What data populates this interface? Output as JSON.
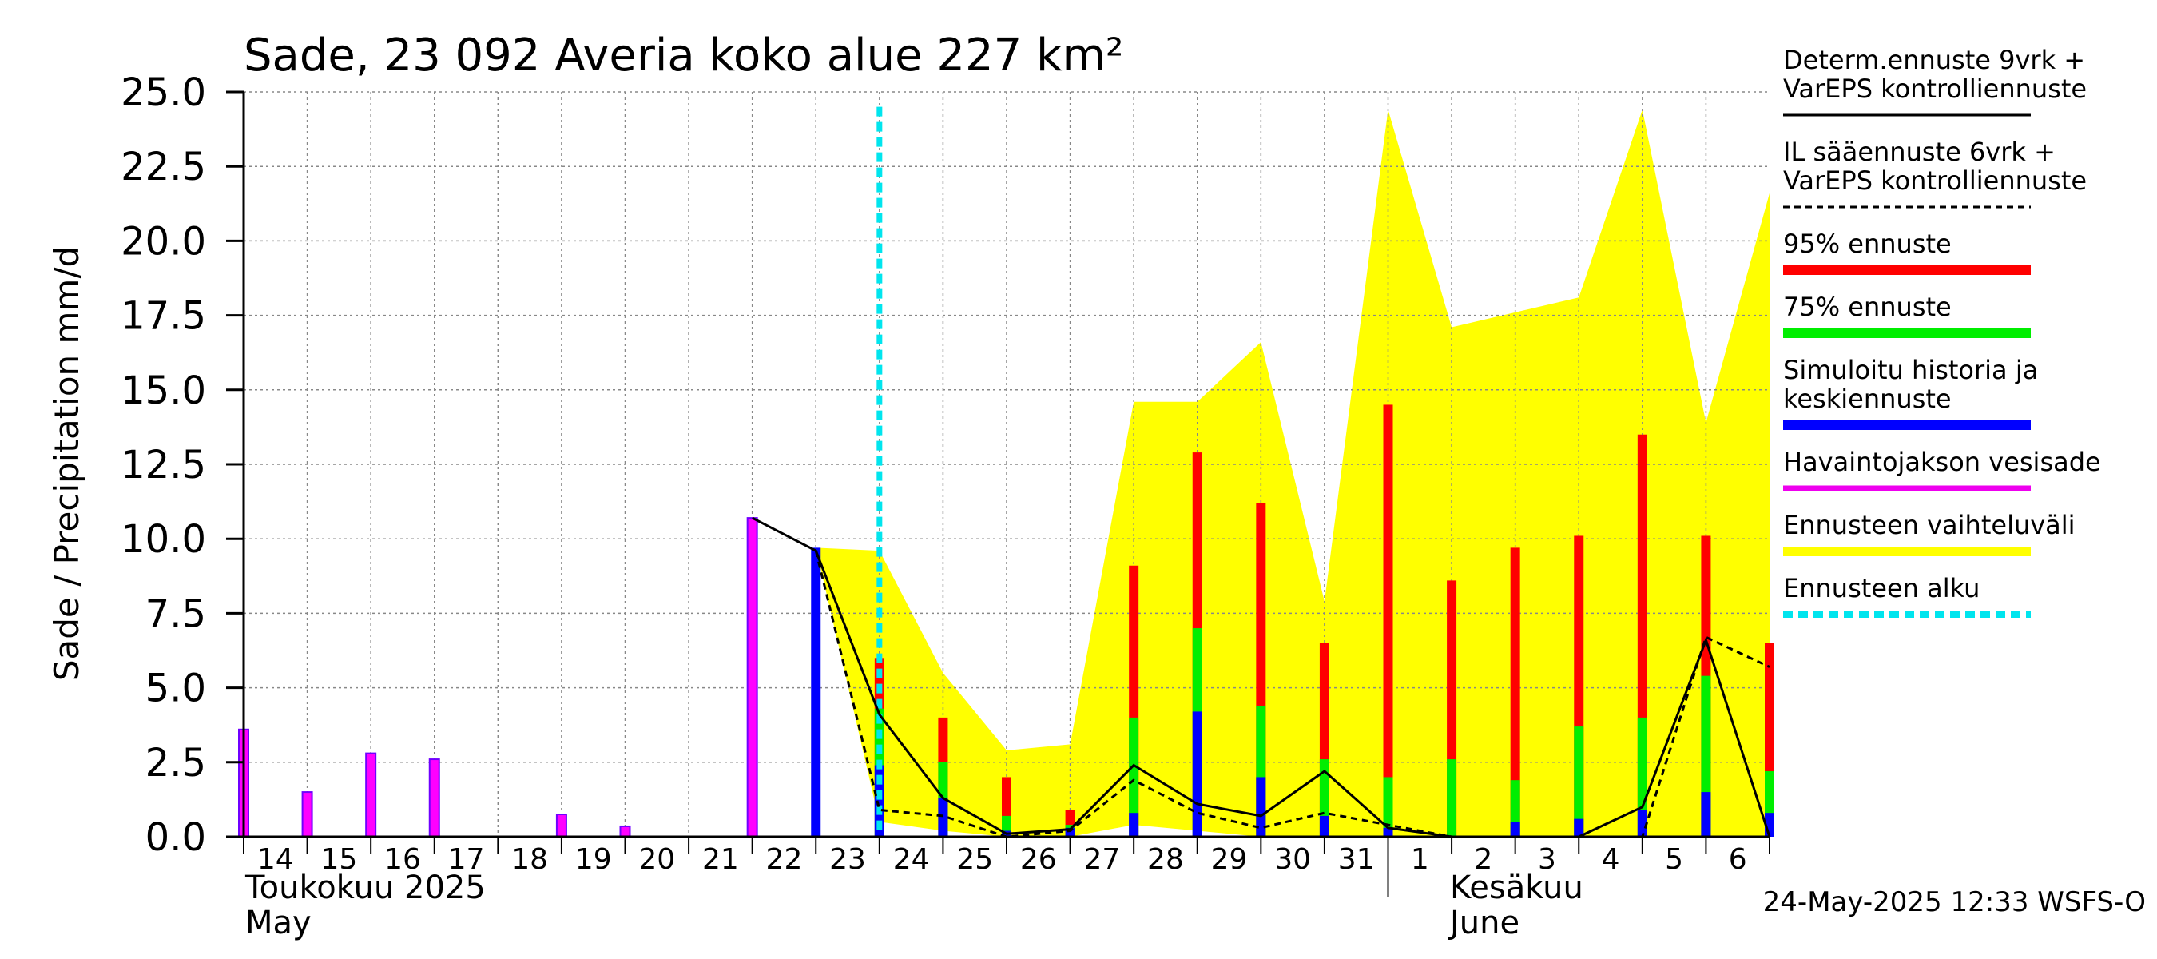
{
  "chart_data": {
    "type": "bar",
    "title": "Sade, 23 092 Averia koko alue 227 km²",
    "ylabel": "Sade / Precipitation   mm/d",
    "ylim": [
      0,
      25
    ],
    "yticks": [
      "0.0",
      "2.5",
      "5.0",
      "7.5",
      "10.0",
      "12.5",
      "15.0",
      "17.5",
      "20.0",
      "22.5",
      "25.0"
    ],
    "xtick_labels": [
      "14",
      "15",
      "16",
      "17",
      "18",
      "19",
      "20",
      "21",
      "22",
      "23",
      "24",
      "25",
      "26",
      "27",
      "28",
      "29",
      "30",
      "31",
      "1",
      "2",
      "3",
      "4",
      "5",
      "6"
    ],
    "month_labels": {
      "may_fi": "Toukokuu  2025",
      "may_en": "May",
      "june_fi": "Kesäkuu",
      "june_en": "June"
    },
    "forecast_start_day": 24,
    "observed": [
      3.6,
      1.5,
      2.8,
      2.6,
      0.0,
      0.75,
      0.35,
      0.0,
      10.7,
      null,
      null,
      null,
      null,
      null,
      null,
      null,
      null,
      null,
      null,
      null,
      null,
      null,
      null,
      null
    ],
    "mean_forecast": [
      null,
      null,
      null,
      null,
      null,
      null,
      null,
      null,
      null,
      9.7,
      2.4,
      1.3,
      0.2,
      0.3,
      0.8,
      4.2,
      2.0,
      0.7,
      0.3,
      0.0,
      0.5,
      0.6,
      0.9,
      1.5,
      0.8
    ],
    "p75": [
      null,
      null,
      null,
      null,
      null,
      null,
      null,
      null,
      null,
      null,
      4.3,
      2.5,
      0.7,
      0.4,
      4.0,
      7.0,
      4.4,
      2.6,
      2.0,
      2.6,
      1.9,
      3.7,
      4.0,
      5.4,
      2.2
    ],
    "p95": [
      null,
      null,
      null,
      null,
      null,
      null,
      null,
      null,
      null,
      null,
      6.0,
      4.0,
      2.0,
      0.9,
      9.1,
      12.9,
      11.2,
      6.5,
      14.5,
      8.6,
      9.7,
      10.1,
      13.5,
      10.1,
      6.5
    ],
    "range_upper": {
      "x": [
        23,
        24,
        25,
        26,
        27,
        28,
        29,
        30,
        31,
        32,
        33,
        34,
        35,
        36,
        37,
        38
      ],
      "y": [
        9.7,
        9.6,
        5.5,
        2.9,
        3.1,
        14.6,
        14.6,
        16.6,
        7.9,
        24.4,
        17.1,
        17.6,
        18.1,
        24.4,
        13.9,
        21.6
      ]
    },
    "range_lower": {
      "x": [
        23,
        24,
        25,
        26,
        27,
        28,
        29,
        30,
        31,
        32,
        33,
        34,
        35,
        36,
        37,
        38
      ],
      "y": [
        9.7,
        0.5,
        0.2,
        0.0,
        0.0,
        0.4,
        0.2,
        0.0,
        0.0,
        0.0,
        0.0,
        0.0,
        0.0,
        0.0,
        0.0,
        0.0
      ]
    },
    "determ_forecast": {
      "x": [
        22,
        23,
        24,
        25,
        26,
        27,
        28,
        29,
        30,
        31,
        32,
        33,
        34,
        35,
        36,
        37,
        38
      ],
      "y": [
        10.7,
        9.6,
        4.1,
        1.3,
        0.1,
        0.25,
        2.4,
        1.1,
        0.7,
        2.2,
        0.3,
        0.0,
        0.0,
        0.0,
        1.0,
        6.6,
        0.0
      ]
    },
    "il_forecast": {
      "x": [
        23,
        24,
        25,
        26,
        27,
        28,
        29,
        30,
        31,
        32,
        33,
        34,
        35,
        36,
        37,
        38
      ],
      "y": [
        9.6,
        0.9,
        0.7,
        0.0,
        0.2,
        1.9,
        0.8,
        0.3,
        0.8,
        0.4,
        0.0,
        0.0,
        0.0,
        0.0,
        6.7,
        5.7
      ]
    },
    "legend": [
      {
        "label_lines": [
          "Determ.ennuste 9vrk +",
          "VarEPS kontrolliennuste"
        ],
        "style": "solid-line",
        "color": "#000000"
      },
      {
        "label_lines": [
          "IL sääennuste 6vrk  +",
          "  VarEPS kontrolliennuste"
        ],
        "style": "dashed-line",
        "color": "#000000"
      },
      {
        "label_lines": [
          "95% ennuste"
        ],
        "style": "thick-bar",
        "color": "#ff0000"
      },
      {
        "label_lines": [
          "75% ennuste"
        ],
        "style": "thick-bar",
        "color": "#00ee00"
      },
      {
        "label_lines": [
          "Simuloitu historia ja",
          "keskiennuste"
        ],
        "style": "thick-bar",
        "color": "#0000ff"
      },
      {
        "label_lines": [
          "Havaintojakson vesisade"
        ],
        "style": "medium-bar",
        "color": "#ee00ee"
      },
      {
        "label_lines": [
          "Ennusteen vaihteluväli"
        ],
        "style": "thick-bar",
        "color": "#ffff00"
      },
      {
        "label_lines": [
          "Ennusteen alku"
        ],
        "style": "dotted-bar",
        "color": "#00e5ee"
      }
    ],
    "colors": {
      "observed": "#ff00ff",
      "observed_edge": "#7000ff",
      "mean": "#0000ff",
      "p75": "#00ee00",
      "p95": "#ff0000",
      "range": "#ffff00",
      "forecast_start": "#00e5ee",
      "grid": "#888888"
    },
    "timestamp": "24-May-2025 12:33 WSFS-O"
  }
}
